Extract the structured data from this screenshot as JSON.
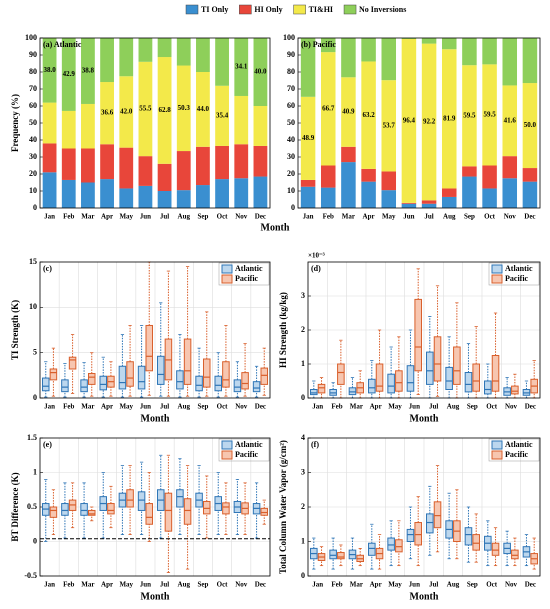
{
  "chart_data": [
    {
      "type": "stacked_bar",
      "title": "(a) Atlantic",
      "y_label": "Frequency (%)",
      "x_label": "Month",
      "categories": [
        "Jan",
        "Feb",
        "Mar",
        "Apr",
        "May",
        "Jun",
        "Jul",
        "Aug",
        "Sep",
        "Oct",
        "Nov",
        "Dec"
      ],
      "ylim": [
        0,
        100
      ],
      "yticks": [
        0,
        10,
        20,
        30,
        40,
        50,
        60,
        70,
        80,
        90,
        100
      ],
      "grid": false,
      "series": [
        {
          "name": "TI Only",
          "color": "#3a8fd0",
          "values": [
            21,
            16.5,
            15,
            17,
            11.5,
            13,
            10,
            10.5,
            13.5,
            17,
            17.5,
            18.5
          ]
        },
        {
          "name": "HI Only",
          "color": "#e8463a",
          "values": [
            17,
            18.5,
            20,
            20.5,
            24,
            17.5,
            16,
            23,
            22.5,
            19.5,
            20,
            18
          ]
        },
        {
          "name": "TI&HI",
          "color": "#f3e94a",
          "values": [
            24,
            22.1,
            26.2,
            36.6,
            42.0,
            55.5,
            62.8,
            50.3,
            44.0,
            35.4,
            28.4,
            23.5
          ],
          "value_labels": [
            null,
            null,
            null,
            "36.6",
            "42.0",
            "55.5",
            "62.8",
            "50.3",
            "44.0",
            "35.4",
            null,
            null
          ]
        },
        {
          "name": "No Inversions",
          "color": "#8ecf5a",
          "values": [
            38.0,
            42.9,
            38.8,
            25.9,
            22.5,
            14,
            11.2,
            16.2,
            20,
            28.1,
            34.1,
            40.0
          ],
          "value_labels": [
            "38.0",
            "42.9",
            "38.8",
            null,
            null,
            null,
            null,
            null,
            null,
            null,
            "34.1",
            "40.0"
          ]
        }
      ]
    },
    {
      "type": "stacked_bar",
      "title": "(b) Pacific",
      "categories": [
        "Jan",
        "Feb",
        "Mar",
        "Apr",
        "May",
        "Jun",
        "Jul",
        "Aug",
        "Sep",
        "Oct",
        "Nov",
        "Dec"
      ],
      "ylim": [
        0,
        100
      ],
      "yticks": [
        0,
        10,
        20,
        30,
        40,
        50,
        60,
        70,
        80,
        90,
        100
      ],
      "grid": false,
      "series": [
        {
          "color": "#3a8fd0",
          "values": [
            12.5,
            12,
            27,
            15.5,
            10.5,
            2.5,
            2.5,
            6.5,
            18.5,
            11.5,
            17.5,
            15.5
          ]
        },
        {
          "color": "#e8463a",
          "values": [
            4,
            13,
            9,
            7.5,
            11,
            0.5,
            2,
            5,
            6,
            13.5,
            13,
            8
          ]
        },
        {
          "color": "#f3e94a",
          "values": [
            48.9,
            66.7,
            40.9,
            63.2,
            53.7,
            96.4,
            92.2,
            81.9,
            59.5,
            59.5,
            41.6,
            50.0
          ],
          "value_labels": [
            "48.9",
            "66.7",
            "40.9",
            "63.2",
            "53.7",
            "96.4",
            "92.2",
            "81.9",
            "59.5",
            "59.5",
            "41.6",
            "50.0"
          ]
        },
        {
          "color": "#8ecf5a",
          "values": [
            34.6,
            8.3,
            23.1,
            13.8,
            24.8,
            0.6,
            3.3,
            6.6,
            16,
            15.5,
            27.9,
            26.5
          ]
        }
      ]
    },
    {
      "type": "box",
      "title": "(c)",
      "y_label": "TI Strength (K)",
      "x_label": "Month",
      "categories": [
        "Jan",
        "Feb",
        "Mar",
        "Apr",
        "May",
        "Jun",
        "Jul",
        "Aug",
        "Sep",
        "Oct",
        "Nov",
        "Dec"
      ],
      "ylim": [
        0,
        15
      ],
      "yticks": [
        0,
        5,
        10,
        15
      ],
      "grid": true,
      "series": [
        {
          "name": "Atlantic",
          "color": "#2e75b6",
          "fill": "#bcd7ee",
          "values": [
            [
              0.1,
              0.8,
              1.3,
              2.2,
              4.0
            ],
            [
              0.1,
              0.7,
              1.2,
              2.0,
              3.8
            ],
            [
              0.1,
              0.7,
              1.2,
              2.0,
              3.9
            ],
            [
              0.1,
              0.9,
              1.5,
              2.4,
              4.5
            ],
            [
              0.1,
              1.0,
              1.7,
              3.5,
              7.0
            ],
            [
              0.1,
              1.0,
              1.8,
              3.5,
              8.0
            ],
            [
              0.2,
              1.5,
              2.6,
              4.6,
              10.5
            ],
            [
              0.1,
              1.0,
              1.8,
              3.0,
              7.0
            ],
            [
              0.1,
              0.8,
              1.4,
              2.4,
              5.5
            ],
            [
              0.1,
              0.8,
              1.4,
              2.4,
              5.0
            ],
            [
              0.1,
              0.7,
              1.2,
              2.0,
              4.0
            ],
            [
              0.1,
              0.7,
              1.1,
              1.8,
              3.5
            ]
          ]
        },
        {
          "name": "Pacific",
          "color": "#d95f2b",
          "fill": "#f7c6b0",
          "values": [
            [
              0.2,
              2.0,
              2.8,
              3.2,
              5.5
            ],
            [
              0.5,
              3.2,
              4.2,
              4.5,
              7.0
            ],
            [
              0.2,
              1.5,
              2.3,
              2.7,
              5.0
            ],
            [
              0.2,
              1.2,
              1.8,
              2.4,
              4.0
            ],
            [
              0.2,
              1.3,
              2.2,
              4.0,
              8.0
            ],
            [
              0.3,
              3.0,
              4.6,
              8.0,
              15.0
            ],
            [
              0.2,
              2.0,
              4.2,
              6.5,
              14.0
            ],
            [
              0.2,
              1.5,
              3.0,
              6.5,
              14.5
            ],
            [
              0.2,
              1.2,
              2.3,
              4.3,
              9.5
            ],
            [
              0.2,
              1.2,
              2.0,
              4.0,
              8.0
            ],
            [
              0.2,
              1.0,
              1.6,
              2.8,
              6.0
            ],
            [
              0.3,
              1.5,
              2.5,
              3.3,
              5.5
            ]
          ]
        }
      ]
    },
    {
      "type": "box",
      "title": "(d)",
      "y_label": "HI Strength (kg/kg)",
      "x_label": "Month",
      "offset_label": "×10⁻³",
      "categories": [
        "Jan",
        "Feb",
        "Mar",
        "Apr",
        "May",
        "Jun",
        "Jul",
        "Aug",
        "Sep",
        "Oct",
        "Nov",
        "Dec"
      ],
      "ylim": [
        0,
        4
      ],
      "yticks": [
        0,
        1,
        2,
        3
      ],
      "grid": true,
      "series": [
        {
          "name": "Atlantic",
          "color": "#2e75b6",
          "fill": "#bcd7ee",
          "values": [
            [
              0,
              0.1,
              0.15,
              0.25,
              0.5
            ],
            [
              0,
              0.08,
              0.15,
              0.25,
              0.45
            ],
            [
              0,
              0.1,
              0.18,
              0.3,
              0.6
            ],
            [
              0,
              0.15,
              0.3,
              0.55,
              1.1
            ],
            [
              0,
              0.15,
              0.35,
              0.7,
              1.5
            ],
            [
              0,
              0.2,
              0.45,
              0.95,
              2.0
            ],
            [
              0,
              0.4,
              0.8,
              1.35,
              2.4
            ],
            [
              0,
              0.25,
              0.5,
              0.9,
              1.8
            ],
            [
              0,
              0.18,
              0.4,
              0.75,
              1.6
            ],
            [
              0,
              0.12,
              0.25,
              0.5,
              1.0
            ],
            [
              0,
              0.08,
              0.18,
              0.3,
              0.6
            ],
            [
              0,
              0.08,
              0.15,
              0.25,
              0.5
            ]
          ]
        },
        {
          "name": "Pacific",
          "color": "#d95f2b",
          "fill": "#f7c6b0",
          "values": [
            [
              0,
              0.15,
              0.3,
              0.4,
              0.6
            ],
            [
              0,
              0.4,
              0.75,
              1.0,
              1.7
            ],
            [
              0,
              0.15,
              0.3,
              0.45,
              0.8
            ],
            [
              0,
              0.2,
              0.35,
              1.0,
              2.0
            ],
            [
              0,
              0.2,
              0.45,
              0.8,
              1.8
            ],
            [
              0.1,
              0.8,
              1.5,
              2.9,
              3.8
            ],
            [
              0.05,
              0.5,
              1.0,
              1.8,
              3.3
            ],
            [
              0,
              0.4,
              0.8,
              1.5,
              2.8
            ],
            [
              0,
              0.2,
              0.5,
              1.0,
              2.1
            ],
            [
              0,
              0.2,
              0.5,
              1.25,
              2.5
            ],
            [
              0,
              0.12,
              0.2,
              0.35,
              0.7
            ],
            [
              0,
              0.15,
              0.35,
              0.55,
              1.1
            ]
          ]
        }
      ]
    },
    {
      "type": "box",
      "title": "(e)",
      "y_label": "BT Difference (K)",
      "x_label": "Month",
      "hline": 0.04,
      "categories": [
        "Jan",
        "Feb",
        "Mar",
        "Apr",
        "May",
        "Jun",
        "Jul",
        "Aug",
        "Sep",
        "Oct",
        "Nov",
        "Dec"
      ],
      "ylim": [
        -0.5,
        1.5
      ],
      "yticks": [
        -0.5,
        0,
        0.5,
        1,
        1.5
      ],
      "grid": true,
      "series": [
        {
          "name": "Atlantic",
          "color": "#2e75b6",
          "fill": "#bcd7ee",
          "values": [
            [
              0.0,
              0.38,
              0.47,
              0.55,
              0.9
            ],
            [
              0.05,
              0.38,
              0.45,
              0.55,
              0.85
            ],
            [
              0.05,
              0.38,
              0.45,
              0.55,
              0.85
            ],
            [
              0.05,
              0.45,
              0.55,
              0.65,
              1.0
            ],
            [
              0.1,
              0.5,
              0.6,
              0.7,
              1.1
            ],
            [
              0.1,
              0.45,
              0.6,
              0.72,
              1.15
            ],
            [
              0.05,
              0.45,
              0.6,
              0.75,
              1.25
            ],
            [
              0.1,
              0.5,
              0.65,
              0.75,
              1.2
            ],
            [
              0.1,
              0.5,
              0.6,
              0.7,
              1.1
            ],
            [
              0.1,
              0.45,
              0.55,
              0.65,
              1.0
            ],
            [
              0.1,
              0.42,
              0.5,
              0.58,
              0.9
            ],
            [
              0.05,
              0.4,
              0.48,
              0.55,
              0.85
            ]
          ]
        },
        {
          "name": "Pacific",
          "color": "#d95f2b",
          "fill": "#f7c6b0",
          "values": [
            [
              0.1,
              0.35,
              0.45,
              0.5,
              0.75
            ],
            [
              0.2,
              0.45,
              0.53,
              0.6,
              0.85
            ],
            [
              0.3,
              0.38,
              0.4,
              0.45,
              0.5
            ],
            [
              0.2,
              0.4,
              0.45,
              0.55,
              0.8
            ],
            [
              0.1,
              0.5,
              0.6,
              0.75,
              1.1
            ],
            [
              0.0,
              0.25,
              0.35,
              0.55,
              1.0
            ],
            [
              -0.45,
              0.15,
              0.45,
              0.7,
              1.25
            ],
            [
              -0.4,
              0.25,
              0.45,
              0.62,
              1.1
            ],
            [
              0.05,
              0.4,
              0.48,
              0.58,
              0.95
            ],
            [
              0.1,
              0.4,
              0.5,
              0.56,
              0.85
            ],
            [
              0.1,
              0.4,
              0.48,
              0.56,
              0.85
            ],
            [
              0.25,
              0.38,
              0.42,
              0.48,
              0.6
            ]
          ]
        }
      ]
    },
    {
      "type": "box",
      "title": "(f)",
      "y_label": "Total Column Water Vapor (g/cm²)",
      "x_label": "Month",
      "categories": [
        "Jan",
        "Feb",
        "Mar",
        "Apr",
        "May",
        "Jun",
        "Jul",
        "Aug",
        "Sep",
        "Oct",
        "Nov",
        "Dec"
      ],
      "ylim": [
        0,
        4
      ],
      "yticks": [
        0,
        1,
        2,
        3,
        4
      ],
      "grid": true,
      "series": [
        {
          "name": "Atlantic",
          "color": "#2e75b6",
          "fill": "#bcd7ee",
          "values": [
            [
              0.2,
              0.5,
              0.65,
              0.8,
              1.1
            ],
            [
              0.2,
              0.5,
              0.6,
              0.75,
              1.1
            ],
            [
              0.2,
              0.5,
              0.62,
              0.75,
              1.1
            ],
            [
              0.2,
              0.6,
              0.8,
              0.95,
              1.5
            ],
            [
              0.3,
              0.75,
              0.9,
              1.1,
              1.6
            ],
            [
              0.5,
              1.0,
              1.2,
              1.35,
              2.0
            ],
            [
              0.6,
              1.25,
              1.55,
              1.8,
              2.6
            ],
            [
              0.5,
              1.1,
              1.35,
              1.6,
              2.4
            ],
            [
              0.4,
              0.9,
              1.2,
              1.4,
              2.0
            ],
            [
              0.3,
              0.75,
              0.95,
              1.15,
              1.6
            ],
            [
              0.3,
              0.65,
              0.8,
              0.95,
              1.3
            ],
            [
              0.3,
              0.55,
              0.7,
              0.85,
              1.2
            ]
          ]
        },
        {
          "name": "Pacific",
          "color": "#d95f2b",
          "fill": "#f7c6b0",
          "values": [
            [
              0.3,
              0.45,
              0.55,
              0.65,
              0.85
            ],
            [
              0.3,
              0.5,
              0.55,
              0.68,
              0.9
            ],
            [
              0.3,
              0.42,
              0.5,
              0.6,
              0.8
            ],
            [
              0.2,
              0.5,
              0.65,
              0.8,
              1.2
            ],
            [
              0.3,
              0.7,
              0.85,
              1.05,
              1.6
            ],
            [
              0.3,
              0.9,
              1.2,
              1.55,
              2.3
            ],
            [
              0.7,
              1.4,
              1.75,
              2.15,
              3.2
            ],
            [
              0.5,
              1.0,
              1.3,
              1.6,
              2.5
            ],
            [
              0.4,
              0.75,
              0.95,
              1.2,
              1.8
            ],
            [
              0.3,
              0.6,
              0.75,
              0.95,
              1.4
            ],
            [
              0.3,
              0.5,
              0.6,
              0.75,
              1.1
            ],
            [
              0.2,
              0.35,
              0.5,
              0.65,
              1.1
            ]
          ]
        }
      ]
    }
  ]
}
